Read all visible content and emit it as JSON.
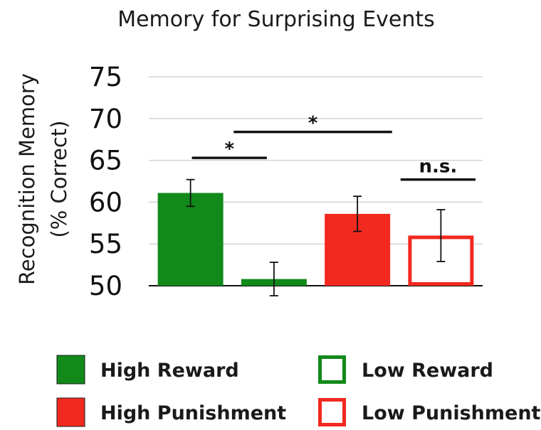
{
  "chart_data": {
    "type": "bar",
    "title": "Memory for Surprising Events",
    "ylabel_line1": "Recognition Memory",
    "ylabel_line2": "(% Correct)",
    "xlabel": "",
    "ylim": [
      50,
      75
    ],
    "yticks": [
      50,
      55,
      60,
      65,
      70,
      75
    ],
    "grid": true,
    "legend_position": "bottom",
    "series": [
      {
        "name": "High Reward",
        "value": 61.1,
        "error": 1.6,
        "style": "filled",
        "color": "#118a1a"
      },
      {
        "name": "Low Reward",
        "value": 50.8,
        "error": 2.0,
        "style": "outline",
        "color": "#118a1a"
      },
      {
        "name": "High Punishment",
        "value": 58.6,
        "error": 2.1,
        "style": "filled",
        "color": "#f2291f"
      },
      {
        "name": "Low Punishment",
        "value": 56.0,
        "error": 3.1,
        "style": "outline",
        "color": "#f2291f"
      }
    ],
    "annotations": [
      {
        "from": 0,
        "to": 1,
        "label": "*",
        "y": 65.3
      },
      {
        "from": 0.5,
        "to": 2.5,
        "label": "*",
        "y": 68.4
      },
      {
        "from": 2.5,
        "to": 3.5,
        "label": "n.s.",
        "y": 62.7
      }
    ]
  }
}
